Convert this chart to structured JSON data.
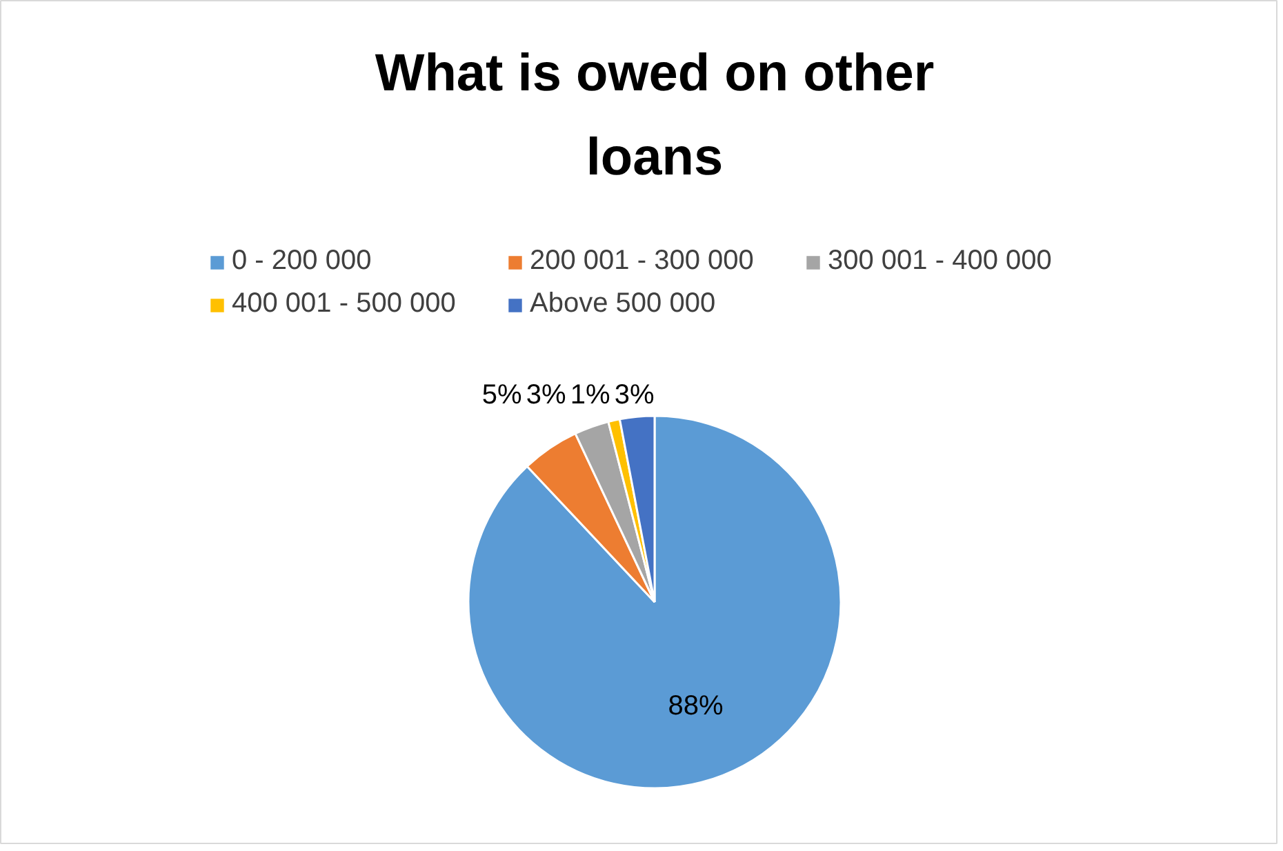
{
  "chart_data": {
    "type": "pie",
    "title": "What is owed on other loans",
    "categories": [
      "0 - 200 000",
      "200 001 - 300 000",
      "300 001 - 400 000",
      "400 001 - 500 000",
      "Above 500 000"
    ],
    "values": [
      88,
      5,
      3,
      1,
      3
    ],
    "colors": [
      "#5b9bd5",
      "#ed7d31",
      "#a5a5a5",
      "#ffc000",
      "#4472c4"
    ],
    "value_labels": [
      "88%",
      "5%",
      "3%",
      "1%",
      "3%"
    ],
    "legend": "top"
  }
}
